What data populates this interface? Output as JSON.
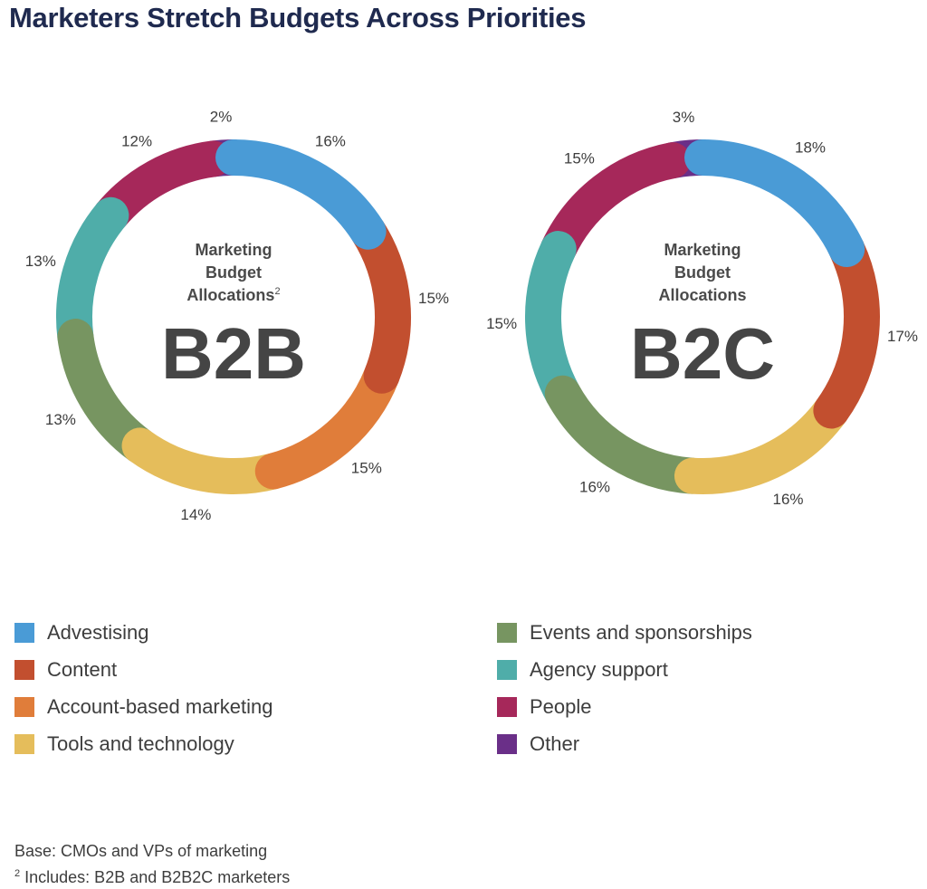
{
  "title": "Marketers Stretch Budgets Across Priorities",
  "colors": {
    "advertising": "#4a9bd6",
    "content": "#c24f2f",
    "account_based": "#e07d3a",
    "tools": "#e5bd5b",
    "events": "#779561",
    "agency": "#4fada9",
    "people": "#a6285a",
    "other": "#6a2f88"
  },
  "legend": {
    "left": [
      "Advestising",
      "Content",
      "Account-based marketing",
      "Tools and technology"
    ],
    "right": [
      "Events and sponsorships",
      "Agency support",
      "People",
      "Other"
    ]
  },
  "chart_data": [
    {
      "type": "pie",
      "variant": "donut",
      "center_label": [
        "Marketing",
        "Budget",
        "Allocations",
        "B2B"
      ],
      "center_superscript": "2",
      "slices": [
        {
          "name": "Advestising",
          "value": 16,
          "label": "16%",
          "color": "#4a9bd6"
        },
        {
          "name": "Content",
          "value": 15,
          "label": "15%",
          "color": "#c24f2f"
        },
        {
          "name": "Account-based marketing",
          "value": 15,
          "label": "15%",
          "color": "#e07d3a"
        },
        {
          "name": "Tools and technology",
          "value": 14,
          "label": "14%",
          "color": "#e5bd5b"
        },
        {
          "name": "Events and sponsorships",
          "value": 13,
          "label": "13%",
          "color": "#779561"
        },
        {
          "name": "Agency support",
          "value": 13,
          "label": "13%",
          "color": "#4fada9"
        },
        {
          "name": "People",
          "value": 12,
          "label": "12%",
          "color": "#a6285a"
        },
        {
          "name": "Other",
          "value": 2,
          "label": "2%",
          "color": "#6a2f88"
        }
      ]
    },
    {
      "type": "pie",
      "variant": "donut",
      "center_label": [
        "Marketing",
        "Budget",
        "Allocations",
        "B2C"
      ],
      "slices": [
        {
          "name": "Advestising",
          "value": 18,
          "label": "18%",
          "color": "#4a9bd6"
        },
        {
          "name": "Content",
          "value": 17,
          "label": "17%",
          "color": "#c24f2f"
        },
        {
          "name": "Tools and technology",
          "value": 16,
          "label": "16%",
          "color": "#e5bd5b"
        },
        {
          "name": "Events and sponsorships",
          "value": 16,
          "label": "16%",
          "color": "#779561"
        },
        {
          "name": "Agency support",
          "value": 15,
          "label": "15%",
          "color": "#4fada9"
        },
        {
          "name": "People",
          "value": 15,
          "label": "15%",
          "color": "#a6285a"
        },
        {
          "name": "Other",
          "value": 3,
          "label": "3%",
          "color": "#6a2f88"
        }
      ]
    }
  ],
  "footnotes": {
    "base": "Base: CMOs and VPs of marketing",
    "note_marker": "2",
    "note": "Includes: B2B and B2B2C marketers"
  }
}
